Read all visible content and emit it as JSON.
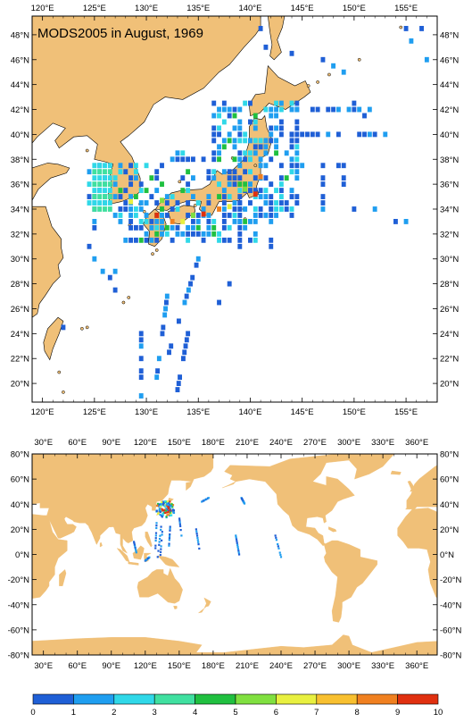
{
  "title": "MODS2005 in August, 1969",
  "colors": {
    "land": "#f0c078",
    "ocean": "#ffffff",
    "frame": "#000000",
    "coast": "#000000"
  },
  "top_map": {
    "lon_range": [
      119,
      158
    ],
    "lat_range": [
      18.5,
      49.5
    ],
    "x_ticks": [
      {
        "value": 120,
        "label": "120°E"
      },
      {
        "value": 125,
        "label": "125°E"
      },
      {
        "value": 130,
        "label": "130°E"
      },
      {
        "value": 135,
        "label": "135°E"
      },
      {
        "value": 140,
        "label": "140°E"
      },
      {
        "value": 145,
        "label": "145°E"
      },
      {
        "value": 150,
        "label": "150°E"
      },
      {
        "value": 155,
        "label": "155°E"
      }
    ],
    "y_ticks": [
      {
        "value": 48,
        "label": "48°N"
      },
      {
        "value": 46,
        "label": "46°N"
      },
      {
        "value": 44,
        "label": "44°N"
      },
      {
        "value": 42,
        "label": "42°N"
      },
      {
        "value": 40,
        "label": "40°N"
      },
      {
        "value": 38,
        "label": "38°N"
      },
      {
        "value": 36,
        "label": "36°N"
      },
      {
        "value": 34,
        "label": "34°N"
      },
      {
        "value": 32,
        "label": "32°N"
      },
      {
        "value": 30,
        "label": "30°N"
      },
      {
        "value": 28,
        "label": "28°N"
      },
      {
        "value": 26,
        "label": "26°N"
      },
      {
        "value": 24,
        "label": "24°N"
      },
      {
        "value": 22,
        "label": "22°N"
      },
      {
        "value": 20,
        "label": "20°N"
      }
    ]
  },
  "world_map": {
    "lon_range": [
      20,
      378
    ],
    "lat_range": [
      -80,
      80
    ],
    "x_ticks": [
      {
        "value": 30,
        "label": "30°E"
      },
      {
        "value": 60,
        "label": "60°E"
      },
      {
        "value": 90,
        "label": "90°E"
      },
      {
        "value": 120,
        "label": "120°E"
      },
      {
        "value": 150,
        "label": "150°E"
      },
      {
        "value": 180,
        "label": "180°E"
      },
      {
        "value": 210,
        "label": "210°E"
      },
      {
        "value": 240,
        "label": "240°E"
      },
      {
        "value": 270,
        "label": "270°E"
      },
      {
        "value": 300,
        "label": "300°E"
      },
      {
        "value": 330,
        "label": "330°E"
      },
      {
        "value": 360,
        "label": "360°E"
      }
    ],
    "y_ticks": [
      {
        "value": 80,
        "label": "80°N"
      },
      {
        "value": 60,
        "label": "60°N"
      },
      {
        "value": 40,
        "label": "40°N"
      },
      {
        "value": 20,
        "label": "20°N"
      },
      {
        "value": 0,
        "label": "0°N"
      },
      {
        "value": -20,
        "label": "-20°N"
      },
      {
        "value": -40,
        "label": "-40°N"
      },
      {
        "value": -60,
        "label": "-60°N"
      },
      {
        "value": -80,
        "label": "-80°N"
      }
    ]
  },
  "colorbar": {
    "labels": [
      "0",
      "1",
      "2",
      "3",
      "4",
      "5",
      "6",
      "7",
      "8",
      "9",
      "10"
    ],
    "colors": [
      "#1f5fd6",
      "#1f9ef0",
      "#30d8e8",
      "#40e0a0",
      "#20c040",
      "#80e040",
      "#e8f040",
      "#f8c030",
      "#f08020",
      "#e03010"
    ]
  }
}
